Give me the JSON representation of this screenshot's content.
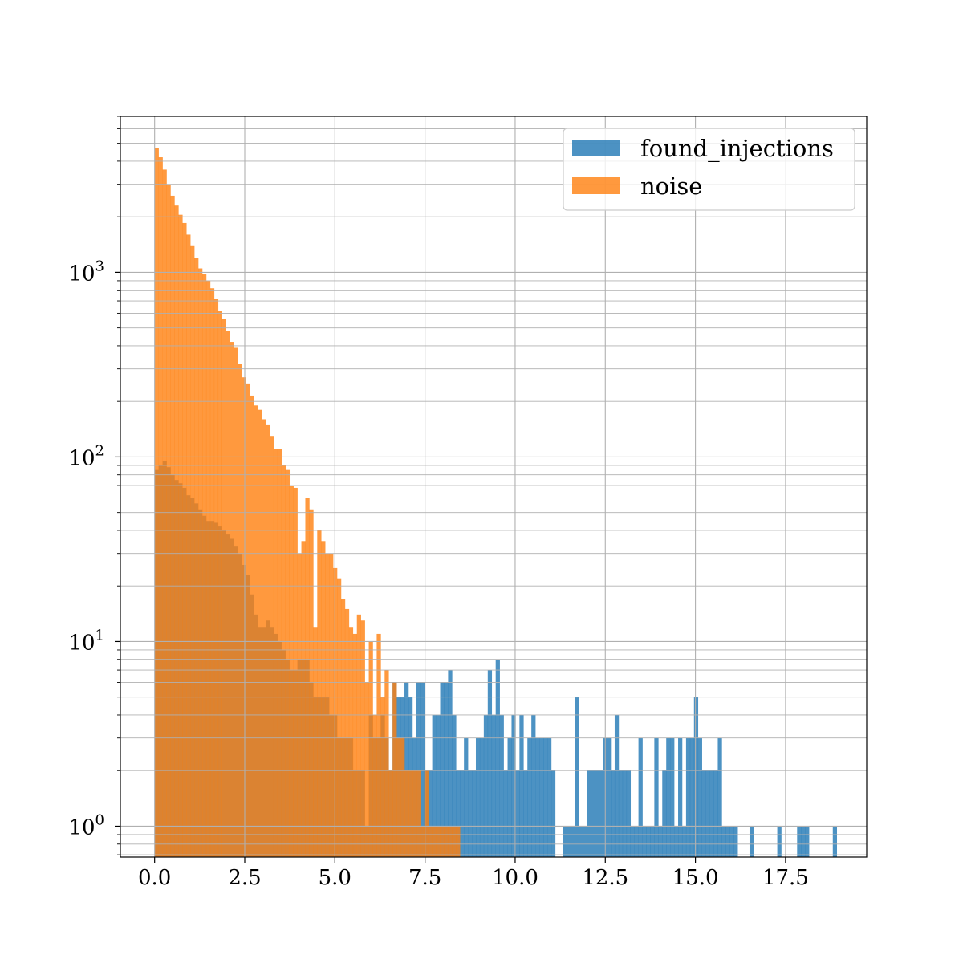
{
  "chart_data": {
    "type": "bar",
    "yscale": "log",
    "grid": true,
    "legend_position": "top-right",
    "xlim": [
      -0.95,
      19.75
    ],
    "ylim": [
      0.68,
      7000
    ],
    "x_ticks": [
      0.0,
      2.5,
      5.0,
      7.5,
      10.0,
      12.5,
      15.0,
      17.5
    ],
    "x_tick_labels": [
      "0.0",
      "2.5",
      "5.0",
      "7.5",
      "10.0",
      "12.5",
      "15.0",
      "17.5"
    ],
    "y_ticks": [
      1,
      10,
      100,
      1000
    ],
    "y_tick_labels": [
      {
        "base": "10",
        "exp": "0"
      },
      {
        "base": "10",
        "exp": "1"
      },
      {
        "base": "10",
        "exp": "2"
      },
      {
        "base": "10",
        "exp": "3"
      }
    ],
    "series": [
      {
        "name": "found_injections",
        "color": "#1f77b4",
        "opacity": 0.8,
        "bins": [
          [
            0.0,
            85
          ],
          [
            0.11,
            90
          ],
          [
            0.22,
            95
          ],
          [
            0.33,
            88
          ],
          [
            0.44,
            80
          ],
          [
            0.55,
            75
          ],
          [
            0.66,
            72
          ],
          [
            0.77,
            68
          ],
          [
            0.88,
            62
          ],
          [
            0.99,
            60
          ],
          [
            1.1,
            56
          ],
          [
            1.21,
            52
          ],
          [
            1.32,
            48
          ],
          [
            1.43,
            45
          ],
          [
            1.54,
            45
          ],
          [
            1.65,
            44
          ],
          [
            1.76,
            42
          ],
          [
            1.87,
            40
          ],
          [
            1.98,
            38
          ],
          [
            2.09,
            36
          ],
          [
            2.2,
            33
          ],
          [
            2.31,
            30
          ],
          [
            2.42,
            26
          ],
          [
            2.53,
            23
          ],
          [
            2.64,
            18
          ],
          [
            2.75,
            14
          ],
          [
            2.86,
            12
          ],
          [
            2.97,
            12
          ],
          [
            3.08,
            13
          ],
          [
            3.19,
            12
          ],
          [
            3.3,
            11
          ],
          [
            3.41,
            10
          ],
          [
            3.52,
            9
          ],
          [
            3.63,
            8
          ],
          [
            3.74,
            7
          ],
          [
            3.85,
            7
          ],
          [
            3.96,
            8
          ],
          [
            4.07,
            8
          ],
          [
            4.18,
            8
          ],
          [
            4.29,
            6
          ],
          [
            4.4,
            5
          ],
          [
            4.51,
            5
          ],
          [
            4.62,
            5
          ],
          [
            4.73,
            5
          ],
          [
            4.84,
            4
          ],
          [
            4.95,
            4
          ],
          [
            5.06,
            3
          ],
          [
            5.17,
            3
          ],
          [
            5.28,
            3
          ],
          [
            5.39,
            3
          ],
          [
            5.5,
            2
          ],
          [
            5.61,
            2
          ],
          [
            5.72,
            2
          ],
          [
            5.83,
            1
          ],
          [
            5.94,
            4
          ],
          [
            6.05,
            3
          ],
          [
            6.16,
            3
          ],
          [
            6.27,
            4
          ],
          [
            6.38,
            3
          ],
          [
            6.49,
            2
          ],
          [
            6.6,
            6
          ],
          [
            6.71,
            5
          ],
          [
            6.82,
            5
          ],
          [
            6.93,
            6
          ],
          [
            7.04,
            5
          ],
          [
            7.15,
            3
          ],
          [
            7.26,
            6
          ],
          [
            7.37,
            6
          ],
          [
            7.48,
            2
          ],
          [
            7.59,
            2
          ],
          [
            7.7,
            4
          ],
          [
            7.81,
            4
          ],
          [
            7.92,
            6
          ],
          [
            8.03,
            6
          ],
          [
            8.14,
            7
          ],
          [
            8.25,
            4
          ],
          [
            8.36,
            2
          ],
          [
            8.47,
            2
          ],
          [
            8.58,
            3
          ],
          [
            8.69,
            2
          ],
          [
            8.8,
            2
          ],
          [
            8.91,
            3
          ],
          [
            9.02,
            3
          ],
          [
            9.13,
            4
          ],
          [
            9.24,
            7
          ],
          [
            9.35,
            4
          ],
          [
            9.46,
            8
          ],
          [
            9.57,
            4
          ],
          [
            9.68,
            2
          ],
          [
            9.79,
            3
          ],
          [
            9.9,
            4
          ],
          [
            10.01,
            2
          ],
          [
            10.12,
            4
          ],
          [
            10.23,
            2
          ],
          [
            10.34,
            3
          ],
          [
            10.45,
            4
          ],
          [
            10.56,
            3
          ],
          [
            10.67,
            3
          ],
          [
            10.78,
            3
          ],
          [
            10.89,
            3
          ],
          [
            11.0,
            2
          ],
          [
            11.11,
            0
          ],
          [
            11.22,
            0
          ],
          [
            11.33,
            1
          ],
          [
            11.44,
            1
          ],
          [
            11.55,
            1
          ],
          [
            11.66,
            5
          ],
          [
            11.77,
            1
          ],
          [
            11.88,
            1
          ],
          [
            11.99,
            2
          ],
          [
            12.1,
            2
          ],
          [
            12.21,
            2
          ],
          [
            12.32,
            2
          ],
          [
            12.43,
            3
          ],
          [
            12.54,
            3
          ],
          [
            12.65,
            2
          ],
          [
            12.76,
            4
          ],
          [
            12.87,
            2
          ],
          [
            12.98,
            2
          ],
          [
            13.09,
            2
          ],
          [
            13.2,
            1
          ],
          [
            13.31,
            1
          ],
          [
            13.42,
            3
          ],
          [
            13.53,
            1
          ],
          [
            13.64,
            1
          ],
          [
            13.75,
            1
          ],
          [
            13.86,
            3
          ],
          [
            13.97,
            1
          ],
          [
            14.08,
            2
          ],
          [
            14.19,
            3
          ],
          [
            14.3,
            3
          ],
          [
            14.41,
            1
          ],
          [
            14.52,
            3
          ],
          [
            14.63,
            1
          ],
          [
            14.74,
            3
          ],
          [
            14.85,
            3
          ],
          [
            14.96,
            5
          ],
          [
            15.07,
            3
          ],
          [
            15.18,
            2
          ],
          [
            15.29,
            2
          ],
          [
            15.4,
            2
          ],
          [
            15.51,
            2
          ],
          [
            15.62,
            3
          ],
          [
            15.73,
            1
          ],
          [
            15.84,
            1
          ],
          [
            15.95,
            1
          ],
          [
            16.06,
            1
          ],
          [
            16.17,
            0
          ],
          [
            16.28,
            0
          ],
          [
            16.39,
            0
          ],
          [
            16.5,
            1
          ],
          [
            16.61,
            0
          ],
          [
            16.72,
            0
          ],
          [
            16.83,
            0
          ],
          [
            16.94,
            0
          ],
          [
            17.05,
            0
          ],
          [
            17.16,
            0
          ],
          [
            17.27,
            1
          ],
          [
            17.38,
            0
          ],
          [
            17.49,
            0
          ],
          [
            17.6,
            0
          ],
          [
            17.71,
            0
          ],
          [
            17.82,
            1
          ],
          [
            17.93,
            1
          ],
          [
            18.04,
            1
          ],
          [
            18.15,
            0
          ],
          [
            18.26,
            0
          ],
          [
            18.37,
            0
          ],
          [
            18.48,
            0
          ],
          [
            18.59,
            0
          ],
          [
            18.7,
            0
          ],
          [
            18.81,
            1
          ]
        ],
        "bin_width": 0.11
      },
      {
        "name": "noise",
        "color": "#ff7f0e",
        "opacity": 0.8,
        "bins": [
          [
            0.0,
            4700
          ],
          [
            0.11,
            4200
          ],
          [
            0.22,
            3600
          ],
          [
            0.33,
            3000
          ],
          [
            0.44,
            2600
          ],
          [
            0.55,
            2300
          ],
          [
            0.66,
            2050
          ],
          [
            0.77,
            1850
          ],
          [
            0.88,
            1600
          ],
          [
            0.99,
            1400
          ],
          [
            1.1,
            1200
          ],
          [
            1.21,
            1050
          ],
          [
            1.32,
            980
          ],
          [
            1.43,
            900
          ],
          [
            1.54,
            820
          ],
          [
            1.65,
            720
          ],
          [
            1.76,
            620
          ],
          [
            1.87,
            560
          ],
          [
            1.98,
            480
          ],
          [
            2.09,
            420
          ],
          [
            2.2,
            390
          ],
          [
            2.31,
            320
          ],
          [
            2.42,
            270
          ],
          [
            2.53,
            250
          ],
          [
            2.64,
            215
          ],
          [
            2.75,
            190
          ],
          [
            2.86,
            180
          ],
          [
            2.97,
            160
          ],
          [
            3.08,
            150
          ],
          [
            3.19,
            135
          ],
          [
            3.3,
            110
          ],
          [
            3.41,
            105
          ],
          [
            3.52,
            90
          ],
          [
            3.63,
            85
          ],
          [
            3.74,
            75
          ],
          [
            3.85,
            68
          ],
          [
            3.96,
            63
          ],
          [
            4.07,
            55
          ],
          [
            4.18,
            60
          ],
          [
            4.29,
            52
          ],
          [
            4.4,
            48
          ],
          [
            4.51,
            40
          ],
          [
            4.62,
            35
          ],
          [
            4.73,
            30
          ],
          [
            4.84,
            30
          ],
          [
            4.95,
            25
          ],
          [
            5.06,
            22
          ],
          [
            5.17,
            17
          ],
          [
            5.28,
            15
          ],
          [
            5.39,
            12
          ],
          [
            5.5,
            11
          ],
          [
            5.61,
            9
          ],
          [
            5.72,
            8
          ],
          [
            5.83,
            6
          ],
          [
            5.94,
            5
          ],
          [
            6.05,
            4
          ],
          [
            6.16,
            4
          ],
          [
            6.27,
            5
          ],
          [
            6.38,
            3
          ],
          [
            6.49,
            2
          ],
          [
            6.6,
            2
          ],
          [
            6.71,
            3
          ],
          [
            6.82,
            3
          ],
          [
            6.93,
            2
          ],
          [
            7.04,
            2
          ],
          [
            7.15,
            2
          ],
          [
            7.26,
            2
          ],
          [
            7.37,
            1
          ],
          [
            7.48,
            2
          ],
          [
            7.59,
            1
          ],
          [
            7.7,
            1
          ],
          [
            7.81,
            1
          ],
          [
            7.92,
            1
          ],
          [
            8.03,
            1
          ],
          [
            8.14,
            1
          ],
          [
            8.25,
            1
          ],
          [
            8.36,
            1
          ]
        ],
        "bin_width": 0.11,
        "overrides": [
          [
            6.2,
            11
          ],
          [
            6.4,
            7
          ],
          [
            6.55,
            6
          ],
          [
            5.6,
            14
          ],
          [
            5.75,
            13
          ],
          [
            5.9,
            10
          ],
          [
            4.35,
            12
          ],
          [
            4.0,
            30
          ],
          [
            4.1,
            35
          ],
          [
            3.7,
            70
          ],
          [
            3.45,
            110
          ],
          [
            3.2,
            130
          ]
        ]
      }
    ]
  }
}
